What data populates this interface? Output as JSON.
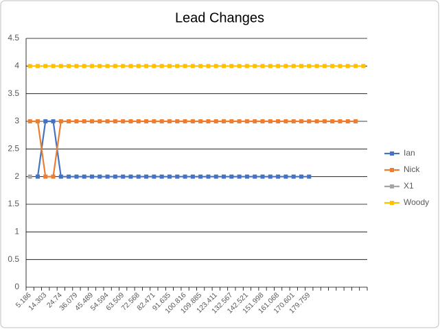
{
  "chart_data": {
    "type": "line",
    "title": "Lead Changes",
    "categories": [
      "5.186",
      null,
      "14.303",
      null,
      "24.74",
      null,
      "36.079",
      null,
      "45.489",
      null,
      "54.594",
      null,
      "63.509",
      null,
      "72.568",
      null,
      "82.471",
      null,
      "91.635",
      null,
      "100.816",
      null,
      "109.885",
      null,
      "123.411",
      null,
      "132.567",
      null,
      "142.521",
      null,
      "151.998",
      null,
      "161.068",
      null,
      "170.601",
      null,
      "179.759",
      null,
      null,
      null,
      null,
      null,
      null,
      null
    ],
    "series": [
      {
        "name": "Ian",
        "color": "#4472c4",
        "values": [
          null,
          2,
          3,
          3,
          2,
          2,
          2,
          2,
          2,
          2,
          2,
          2,
          2,
          2,
          2,
          2,
          2,
          2,
          2,
          2,
          2,
          2,
          2,
          2,
          2,
          2,
          2,
          2,
          2,
          2,
          2,
          2,
          2,
          2,
          2,
          2,
          2,
          null,
          null,
          null,
          null,
          null,
          null,
          null
        ]
      },
      {
        "name": "Nick",
        "color": "#ed7d31",
        "values": [
          3,
          3,
          2,
          2,
          3,
          3,
          3,
          3,
          3,
          3,
          3,
          3,
          3,
          3,
          3,
          3,
          3,
          3,
          3,
          3,
          3,
          3,
          3,
          3,
          3,
          3,
          3,
          3,
          3,
          3,
          3,
          3,
          3,
          3,
          3,
          3,
          3,
          3,
          3,
          3,
          3,
          3,
          3,
          null
        ]
      },
      {
        "name": "X1",
        "color": "#a5a5a5",
        "values": [
          2,
          null,
          null,
          null,
          null,
          null,
          null,
          null,
          null,
          null,
          null,
          null,
          null,
          null,
          null,
          null,
          null,
          null,
          null,
          null,
          null,
          null,
          null,
          null,
          null,
          null,
          null,
          null,
          null,
          null,
          null,
          null,
          null,
          null,
          null,
          null,
          null,
          null,
          null,
          null,
          null,
          null,
          null,
          null
        ]
      },
      {
        "name": "Woody",
        "color": "#ffc000",
        "values": [
          4,
          4,
          4,
          4,
          4,
          4,
          4,
          4,
          4,
          4,
          4,
          4,
          4,
          4,
          4,
          4,
          4,
          4,
          4,
          4,
          4,
          4,
          4,
          4,
          4,
          4,
          4,
          4,
          4,
          4,
          4,
          4,
          4,
          4,
          4,
          4,
          4,
          4,
          4,
          4,
          4,
          4,
          4,
          4
        ]
      }
    ],
    "ylim": [
      0,
      4.5
    ],
    "yticks": [
      0,
      0.5,
      1,
      1.5,
      2,
      2.5,
      3,
      3.5,
      4,
      4.5
    ],
    "grid": true,
    "legend": "right"
  }
}
